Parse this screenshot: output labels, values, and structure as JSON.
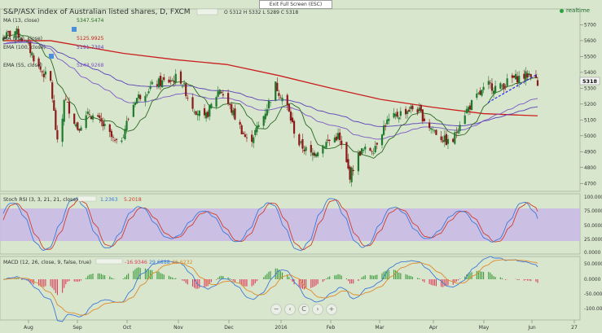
{
  "header": {
    "symbol_line": "S&P/ASX index of Australian listed shares, D, FXCM",
    "ohlc": "O 5312 H 5332 L 5289 C 5318",
    "exit_fullscreen": "Exit Full Screen (ESC)",
    "realtime": "realtime",
    "current_price": "5318"
  },
  "colors": {
    "background": "#d7e6cc",
    "panel_border": "#9aa596",
    "candle_up": "#1f7a2e",
    "candle_down": "#8b1a1a",
    "ma_13": "#2b6a24",
    "ema_55": "#7d58c8",
    "ema_100": "#5b3fb8",
    "ma_200": "#cc1f1f",
    "trendline": "#2b2be8",
    "stoch_band": "#c9b8e8",
    "stoch_k": "#3f78d8",
    "stoch_d": "#d23c2c",
    "macd_line": "#3f78d8",
    "signal_line": "#e08a2c",
    "hist_pos": "#3a9a3a",
    "hist_neg": "#e03a5a"
  },
  "indicators": {
    "ma13": {
      "label": "MA (13, close)",
      "value": "5347.5474"
    },
    "ma200": {
      "label": "MA (200, close)",
      "value": "5125.9925"
    },
    "ema100": {
      "label": "EMA (100, close)",
      "value": "5191.7304"
    },
    "ema55": {
      "label": "EMA (55, close)",
      "value": "5243.9268"
    },
    "stoch": {
      "label": "Stoch RSI (3, 3, 21, 21, close)",
      "k": "1.2363",
      "d": "5.2018"
    },
    "macd": {
      "label": "MACD (12, 26, close, 9, false, true)",
      "hist": "-16.9346",
      "macd": "29.6888",
      "signal": "46.6232"
    }
  },
  "axes": {
    "price_ticks": [
      "5700",
      "5600",
      "5500",
      "5400",
      "5300",
      "5200",
      "5100",
      "5000",
      "4900",
      "4800",
      "4700"
    ],
    "stoch_ticks": [
      "100.000",
      "75.0000",
      "50.0000",
      "25.0000",
      "0.0000"
    ],
    "macd_ticks": [
      "50.0000",
      "0.0000",
      "-50.0000",
      "-100.0000"
    ],
    "time_ticks": [
      "Aug",
      "Sep",
      "Oct",
      "Nov",
      "Dec",
      "2016",
      "Feb",
      "Mar",
      "Apr",
      "May",
      "Jun",
      "27"
    ]
  },
  "nav": {
    "zoom_out": "−",
    "left": "‹",
    "reset": "C",
    "right": "›",
    "zoom_in": "+"
  },
  "chart_data": {
    "type": "candlestick",
    "title": "S&P/ASX index of Australian listed shares, D, FXCM",
    "timeframe": "D",
    "ylim": [
      4650,
      5800
    ],
    "panels": [
      "price",
      "stoch_rsi",
      "macd"
    ],
    "months": [
      "Aug",
      "Sep",
      "Oct",
      "Nov",
      "Dec",
      "2016",
      "Feb",
      "Mar",
      "Apr",
      "May",
      "Jun"
    ],
    "price_path_keypoints": [
      {
        "date": "Jul 22",
        "close": 5620
      },
      {
        "date": "Jul 29",
        "close": 5660
      },
      {
        "date": "Aug 05",
        "close": 5580
      },
      {
        "date": "Aug 12",
        "close": 5430
      },
      {
        "date": "Aug 19",
        "close": 5340
      },
      {
        "date": "Aug 24",
        "close": 4850
      },
      {
        "date": "Aug 27",
        "close": 5240
      },
      {
        "date": "Sep 04",
        "close": 5050
      },
      {
        "date": "Sep 11",
        "close": 5140
      },
      {
        "date": "Sep 18",
        "close": 5080
      },
      {
        "date": "Sep 28",
        "close": 4930
      },
      {
        "date": "Oct 08",
        "close": 5230
      },
      {
        "date": "Oct 20",
        "close": 5330
      },
      {
        "date": "Oct 30",
        "close": 5350
      },
      {
        "date": "Nov 03",
        "close": 5380
      },
      {
        "date": "Nov 10",
        "close": 5200
      },
      {
        "date": "Nov 18",
        "close": 5100
      },
      {
        "date": "Nov 27",
        "close": 5300
      },
      {
        "date": "Dec 07",
        "close": 5100
      },
      {
        "date": "Dec 14",
        "close": 4950
      },
      {
        "date": "Dec 22",
        "close": 5100
      },
      {
        "date": "Dec 30",
        "close": 5320
      },
      {
        "date": "Jan 06",
        "close": 5180
      },
      {
        "date": "Jan 12",
        "close": 4960
      },
      {
        "date": "Jan 20",
        "close": 4880
      },
      {
        "date": "Jan 28",
        "close": 4950
      },
      {
        "date": "Feb 05",
        "close": 5000
      },
      {
        "date": "Feb 12",
        "close": 4750
      },
      {
        "date": "Feb 18",
        "close": 4900
      },
      {
        "date": "Feb 26",
        "close": 4920
      },
      {
        "date": "Mar 04",
        "close": 5080
      },
      {
        "date": "Mar 14",
        "close": 5150
      },
      {
        "date": "Mar 22",
        "close": 5180
      },
      {
        "date": "Mar 30",
        "close": 5060
      },
      {
        "date": "Apr 06",
        "close": 4990
      },
      {
        "date": "Apr 12",
        "close": 4940
      },
      {
        "date": "Apr 18",
        "close": 5120
      },
      {
        "date": "Apr 26",
        "close": 5230
      },
      {
        "date": "May 04",
        "close": 5320
      },
      {
        "date": "May 10",
        "close": 5300
      },
      {
        "date": "May 18",
        "close": 5360
      },
      {
        "date": "May 24",
        "close": 5370
      },
      {
        "date": "May 30",
        "close": 5400
      },
      {
        "date": "Jun 02",
        "close": 5318
      }
    ],
    "last": {
      "open": 5312,
      "high": 5332,
      "low": 5289,
      "close": 5318
    },
    "trendline": [
      {
        "date": "May 04",
        "price": 5180
      },
      {
        "date": "Jun 02",
        "price": 5350
      }
    ],
    "ma200_path": [
      {
        "date": "Jul 22",
        "value": 5600
      },
      {
        "date": "Aug 19",
        "value": 5600
      },
      {
        "date": "Oct 01",
        "value": 5520
      },
      {
        "date": "Nov 01",
        "value": 5480
      },
      {
        "date": "Dec 01",
        "value": 5450
      },
      {
        "date": "Jan 01",
        "value": 5380
      },
      {
        "date": "Feb 01",
        "value": 5300
      },
      {
        "date": "Mar 01",
        "value": 5230
      },
      {
        "date": "Apr 01",
        "value": 5180
      },
      {
        "date": "May 01",
        "value": 5140
      },
      {
        "date": "Jun 02",
        "value": 5126
      }
    ]
  }
}
